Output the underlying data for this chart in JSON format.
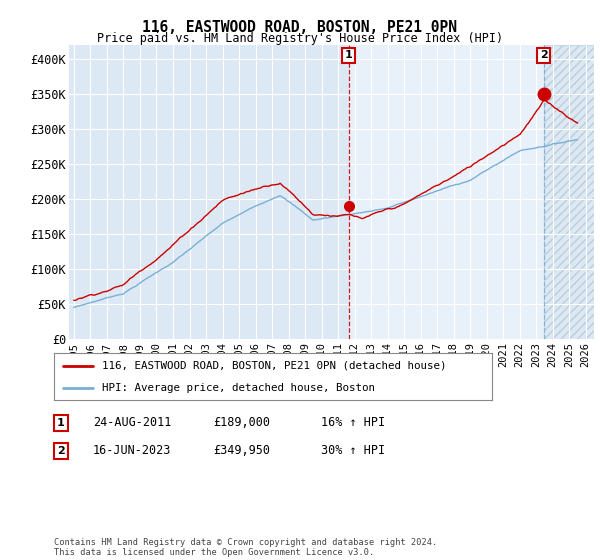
{
  "title": "116, EASTWOOD ROAD, BOSTON, PE21 0PN",
  "subtitle": "Price paid vs. HM Land Registry's House Price Index (HPI)",
  "ylim": [
    0,
    420000
  ],
  "yticks": [
    0,
    50000,
    100000,
    150000,
    200000,
    250000,
    300000,
    350000,
    400000
  ],
  "ytick_labels": [
    "£0",
    "£50K",
    "£100K",
    "£150K",
    "£200K",
    "£250K",
    "£300K",
    "£350K",
    "£400K"
  ],
  "background_color": "#dce9f5",
  "background_color2": "#e8f1fa",
  "hatch_color": "#c8d8e8",
  "red_line_color": "#cc0000",
  "blue_line_color": "#7aafd4",
  "marker1_x": 2011.65,
  "marker1_y": 189000,
  "marker2_x": 2023.46,
  "marker2_y": 349950,
  "annotation1": {
    "label": "1",
    "date": "24-AUG-2011",
    "price": "£189,000",
    "hpi": "16% ↑ HPI"
  },
  "annotation2": {
    "label": "2",
    "date": "16-JUN-2023",
    "price": "£349,950",
    "hpi": "30% ↑ HPI"
  },
  "legend_line1": "116, EASTWOOD ROAD, BOSTON, PE21 0PN (detached house)",
  "legend_line2": "HPI: Average price, detached house, Boston",
  "footer": "Contains HM Land Registry data © Crown copyright and database right 2024.\nThis data is licensed under the Open Government Licence v3.0.",
  "xmin": 1995,
  "xmax": 2026,
  "hatch_start": 2023.46
}
